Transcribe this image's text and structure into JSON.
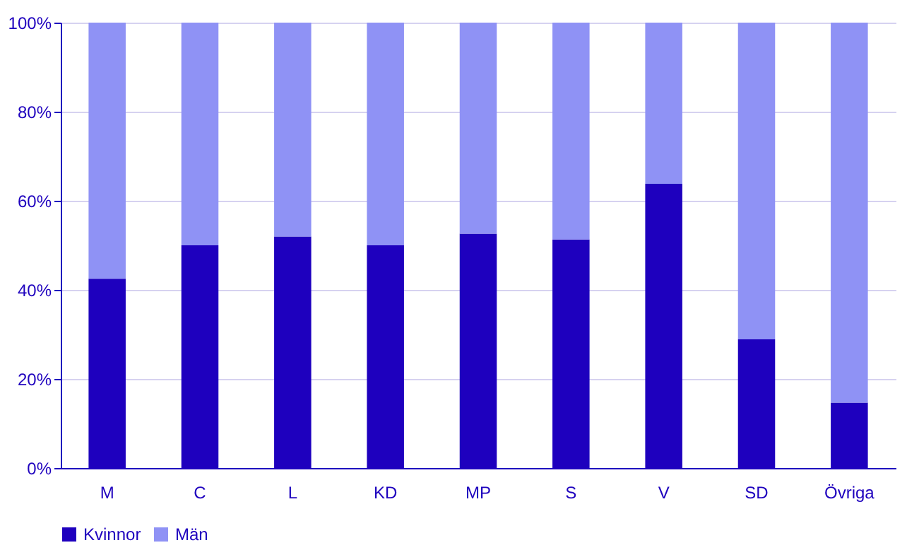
{
  "chart_data": {
    "type": "bar",
    "stacked": true,
    "categories": [
      "M",
      "C",
      "L",
      "KD",
      "MP",
      "S",
      "V",
      "SD",
      "Övriga"
    ],
    "series": [
      {
        "name": "Kvinnor",
        "color": "#1e00be",
        "values": [
          42.5,
          50,
          52,
          50,
          52.6,
          51.3,
          63.8,
          28.9,
          14.7
        ]
      },
      {
        "name": "Män",
        "color": "#8f92f5",
        "values": [
          57.5,
          50,
          48,
          50,
          47.4,
          48.7,
          36.2,
          71.1,
          85.3
        ]
      }
    ],
    "ylim": [
      0,
      100
    ],
    "yticks": [
      {
        "value": 0,
        "label": "0%"
      },
      {
        "value": 20,
        "label": "20%"
      },
      {
        "value": 40,
        "label": "40%"
      },
      {
        "value": 60,
        "label": "60%"
      },
      {
        "value": 80,
        "label": "80%"
      },
      {
        "value": 100,
        "label": "100%"
      }
    ],
    "grid": "y",
    "legend": "bottom"
  }
}
